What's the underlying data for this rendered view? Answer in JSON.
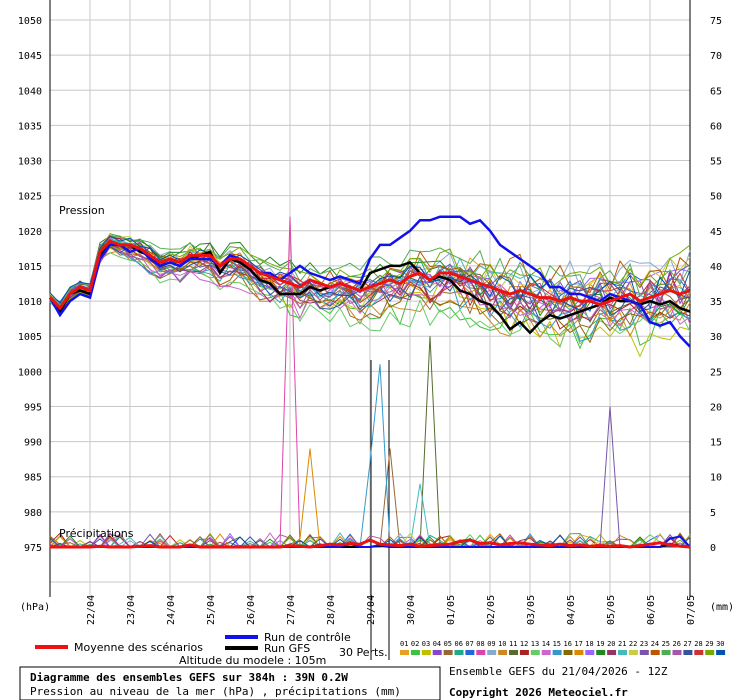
{
  "chart_data": {
    "type": "line",
    "title": "Diagramme des ensembles GEFS sur 384h : 39N 0.2W",
    "subtitle": "Pression au niveau de la mer (hPa) , précipitations (mm)",
    "pressure_label": "Pression",
    "precip_label": "Précipitations",
    "left_unit": "(hPa)",
    "right_unit": "(mm)",
    "left_axis": {
      "ticks": [
        975,
        980,
        985,
        990,
        995,
        1000,
        1005,
        1010,
        1015,
        1020,
        1025,
        1030,
        1035,
        1040,
        1045,
        1050
      ],
      "ylim": [
        975,
        1050
      ]
    },
    "right_axis": {
      "ticks": [
        0,
        5,
        10,
        15,
        20,
        25,
        30,
        35,
        40,
        45,
        50,
        55,
        60,
        65,
        70,
        75
      ],
      "ylim": [
        0,
        75
      ]
    },
    "x_labels": [
      "22/04",
      "23/04",
      "24/04",
      "25/04",
      "26/04",
      "27/04",
      "28/04",
      "29/04",
      "30/04",
      "01/05",
      "02/05",
      "03/05",
      "04/05",
      "05/05",
      "06/05",
      "07/05"
    ],
    "grid": true,
    "legend": {
      "mean": "Moyenne des scénarios",
      "control": "Run de contrôle",
      "gfs": "Run GFS",
      "perts": "30 Perts.",
      "members": [
        "01",
        "02",
        "03",
        "04",
        "05",
        "06",
        "07",
        "08",
        "09",
        "10",
        "11",
        "12",
        "13",
        "14",
        "15",
        "16",
        "17",
        "18",
        "19",
        "20",
        "21",
        "22",
        "23",
        "24",
        "25",
        "26",
        "27",
        "28",
        "29",
        "30"
      ]
    },
    "altitude": "Altitude du modele : 105m",
    "ensemble_run": "Ensemble GEFS du 21/04/2026 - 12Z",
    "copyright": "Copyright 2026 Meteociel.fr",
    "colors": {
      "mean": "#ee1111",
      "control": "#1111ee",
      "gfs": "#000000",
      "grid": "#c8c8c8"
    },
    "member_colors": [
      "#e8a020",
      "#40c040",
      "#c0c000",
      "#8844cc",
      "#996633",
      "#22aa88",
      "#2266dd",
      "#dd44aa",
      "#88aacc",
      "#cc8822",
      "#556b2f",
      "#aa2222",
      "#66cc66",
      "#cc66cc",
      "#3399cc",
      "#886600",
      "#dd8800",
      "#9966ff",
      "#228822",
      "#993366",
      "#44bbbb",
      "#cccc44",
      "#7755aa",
      "#bb5500",
      "#55aa55",
      "#aa55aa",
      "#335599",
      "#cc3333",
      "#77aa00",
      "#0055aa"
    ],
    "series": {
      "mean": [
        1010.5,
        1009,
        1011,
        1012,
        1011.5,
        1017,
        1018.5,
        1018,
        1018,
        1017.5,
        1016.5,
        1015.5,
        1016,
        1015.5,
        1016.5,
        1016.5,
        1016.5,
        1015,
        1016,
        1016,
        1015,
        1014,
        1013.5,
        1013,
        1012.5,
        1012,
        1013,
        1012.5,
        1012,
        1012.5,
        1012,
        1011.5,
        1012,
        1012.5,
        1013,
        1012.5,
        1013.5,
        1014,
        1013,
        1014,
        1014,
        1013.5,
        1013,
        1012.5,
        1012,
        1011.5,
        1011,
        1011.5,
        1011,
        1010.5,
        1010.5,
        1010,
        1010.5,
        1010,
        1010,
        1009.5,
        1010,
        1010.5,
        1011,
        1010,
        1010.5,
        1011,
        1011.5,
        1011,
        1011.5
      ],
      "control": [
        1010.5,
        1008,
        1010,
        1011,
        1010.5,
        1016,
        1018,
        1018,
        1017,
        1017.5,
        1016,
        1015,
        1015.5,
        1015,
        1016,
        1016,
        1016,
        1015,
        1016.5,
        1016,
        1015,
        1014,
        1014,
        1013,
        1014,
        1015,
        1014,
        1013.5,
        1013,
        1013.5,
        1013,
        1012.5,
        1016,
        1018,
        1018,
        1019,
        1020,
        1021.5,
        1021.5,
        1022,
        1022,
        1022,
        1021,
        1021.5,
        1020,
        1018,
        1017,
        1016,
        1015,
        1014,
        1012,
        1012,
        1011,
        1011,
        1010.5,
        1010,
        1011,
        1010.5,
        1010,
        1009.5,
        1007,
        1006.5,
        1007,
        1005,
        1003.5
      ],
      "gfs": [
        1010.5,
        1008.5,
        1011,
        1011.5,
        1011,
        1016.5,
        1018.5,
        1018,
        1018,
        1017,
        1016.5,
        1015,
        1015.5,
        1015,
        1016,
        1016.5,
        1017,
        1014,
        1016,
        1015.5,
        1014.5,
        1013,
        1012.5,
        1011,
        1011,
        1011,
        1012,
        1011.5,
        1012,
        1012.5,
        1012,
        1011.5,
        1014,
        1014.5,
        1015,
        1015,
        1015.5,
        1014,
        1013,
        1013.5,
        1013,
        1011.5,
        1011,
        1010,
        1009.5,
        1008,
        1006,
        1007,
        1005.5,
        1007,
        1008,
        1007.5,
        1008,
        1008.5,
        1009,
        1009.5,
        1010.5,
        1010,
        1010,
        1009.5,
        1010,
        1009.5,
        1010,
        1009,
        1008.5
      ],
      "precip_mean": [
        0,
        0,
        0,
        0,
        0,
        0.1,
        0,
        0,
        0,
        0.1,
        0.2,
        0,
        0,
        0,
        0.3,
        0,
        0,
        0,
        0,
        0,
        0,
        0,
        0,
        0,
        0.2,
        0.1,
        0,
        0.2,
        0.4,
        0.3,
        0.5,
        0.4,
        1,
        0.4,
        0.3,
        0.2,
        0.4,
        0.1,
        0.2,
        0.3,
        0.4,
        0.8,
        1,
        0.5,
        0.6,
        0.3,
        0.5,
        0.6,
        0.4,
        0.3,
        0.2,
        0.4,
        0.2,
        0.3,
        0.1,
        0.2,
        0.1,
        0.2,
        0,
        0.2,
        0.4,
        0.6,
        0.3,
        0.1,
        0
      ],
      "precip_control": [
        0,
        0,
        0,
        0,
        0,
        0,
        0,
        0,
        0,
        0,
        0,
        0,
        0,
        0,
        0,
        0,
        0,
        0,
        0,
        0,
        0,
        0,
        0,
        0,
        0,
        0,
        0,
        0,
        0,
        0,
        0.5,
        0,
        0,
        0.3,
        0,
        0,
        0,
        0,
        0,
        0,
        0,
        0,
        0,
        0,
        0,
        0,
        0,
        0,
        0,
        0,
        0,
        0,
        0,
        0,
        0,
        0,
        0,
        0,
        0,
        0,
        0,
        0,
        1.2,
        1.5,
        0
      ],
      "precip_gfs": [
        0,
        0,
        0,
        0,
        0,
        0,
        0,
        0,
        0,
        0,
        0,
        0,
        0,
        0,
        0,
        0,
        0,
        0,
        0,
        0,
        0,
        0,
        0,
        0,
        0,
        0,
        0,
        0,
        0,
        0,
        0,
        0,
        0,
        0.2,
        0,
        0,
        0,
        0,
        0,
        0,
        0,
        0,
        0,
        0,
        0,
        0,
        0,
        0,
        0,
        0,
        0,
        0,
        0,
        0,
        0,
        0,
        0,
        0,
        0,
        0,
        0,
        0,
        0.4,
        0.2,
        0
      ]
    }
  }
}
